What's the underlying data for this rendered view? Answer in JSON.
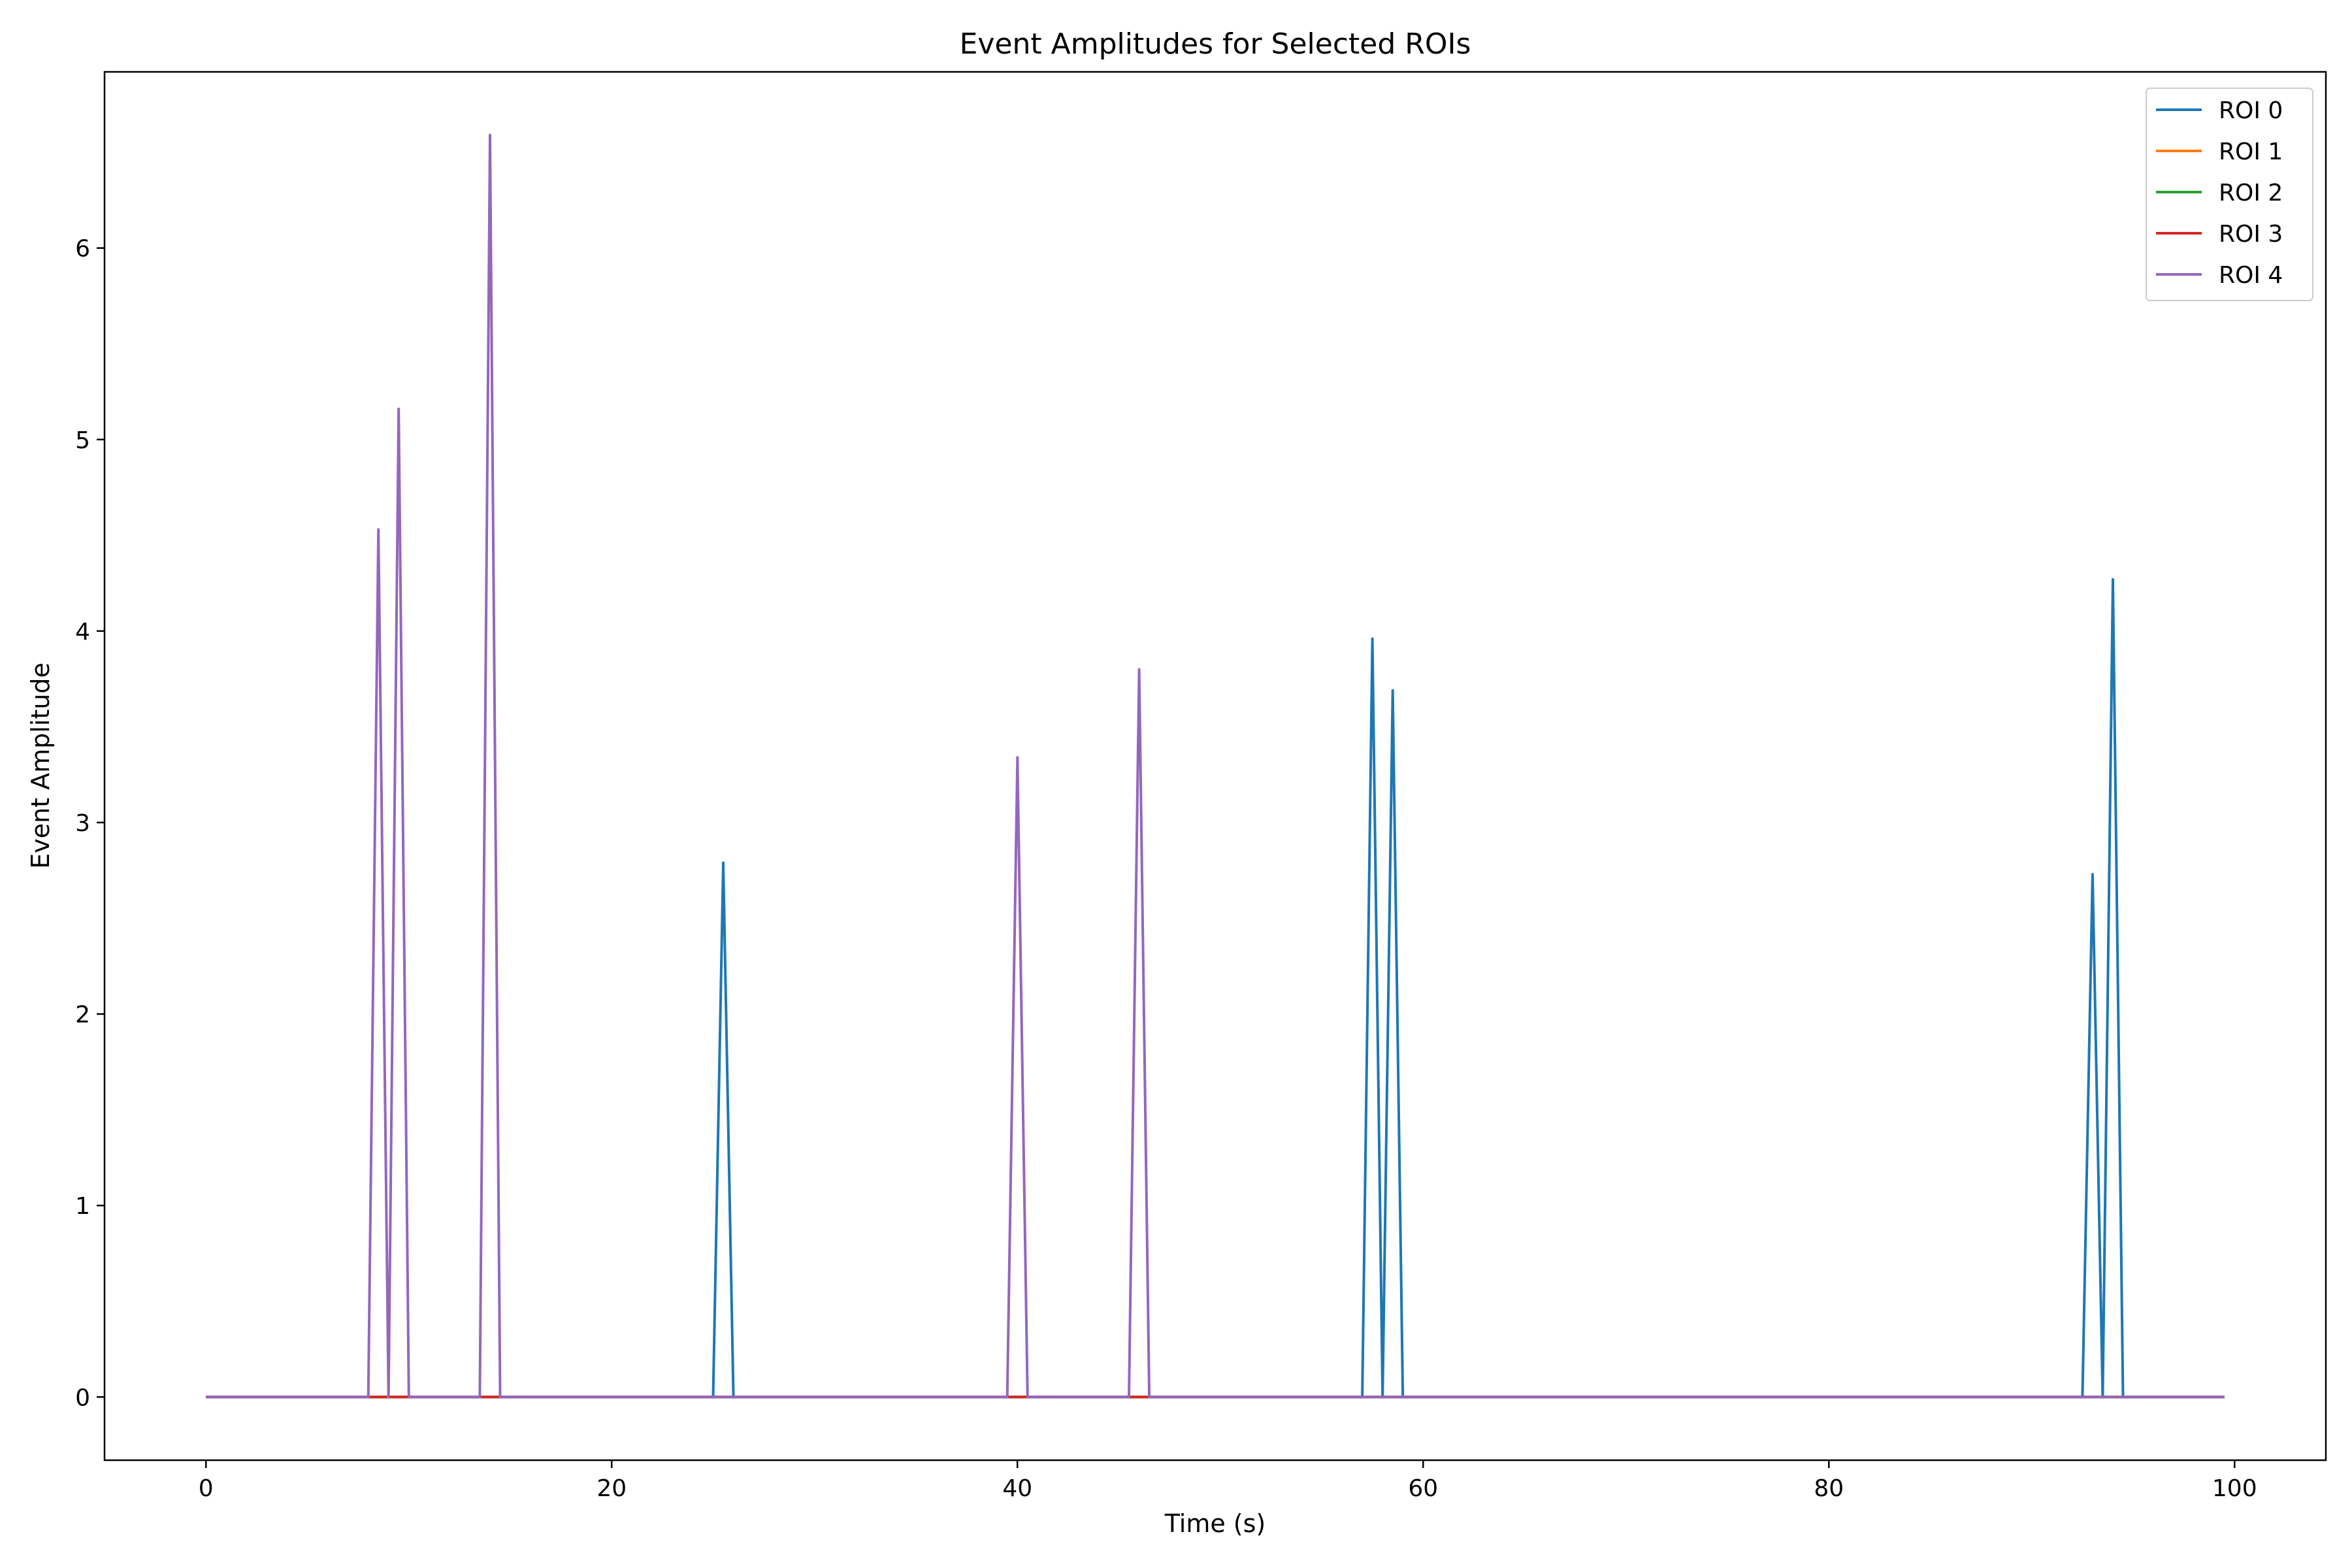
{
  "chart_data": {
    "type": "line",
    "title": "Event Amplitudes for Selected ROIs",
    "xlabel": "Time (s)",
    "ylabel": "Event Amplitude",
    "xlim": [
      -5,
      104.5
    ],
    "ylim": [
      -0.33,
      6.92
    ],
    "xticks": [
      0,
      20,
      40,
      60,
      80,
      100
    ],
    "yticks": [
      0,
      1,
      2,
      3,
      4,
      5,
      6
    ],
    "x_range": [
      0,
      99.5
    ],
    "grid": false,
    "legend_position": "top-right",
    "series": [
      {
        "name": "ROI 0",
        "color": "#1f77b4",
        "events": [
          {
            "x": 25.5,
            "y": 2.79
          },
          {
            "x": 57.5,
            "y": 3.96
          },
          {
            "x": 58.5,
            "y": 3.69
          },
          {
            "x": 93.0,
            "y": 2.73
          },
          {
            "x": 94.0,
            "y": 4.27
          }
        ]
      },
      {
        "name": "ROI 1",
        "color": "#ff7f0e",
        "events": []
      },
      {
        "name": "ROI 2",
        "color": "#2ca02c",
        "events": []
      },
      {
        "name": "ROI 3",
        "color": "#d62728",
        "events": []
      },
      {
        "name": "ROI 4",
        "color": "#9467bd",
        "events": [
          {
            "x": 8.5,
            "y": 4.53
          },
          {
            "x": 9.5,
            "y": 5.16
          },
          {
            "x": 14.0,
            "y": 6.59
          },
          {
            "x": 40.0,
            "y": 3.34
          },
          {
            "x": 46.0,
            "y": 3.8
          }
        ]
      }
    ]
  }
}
